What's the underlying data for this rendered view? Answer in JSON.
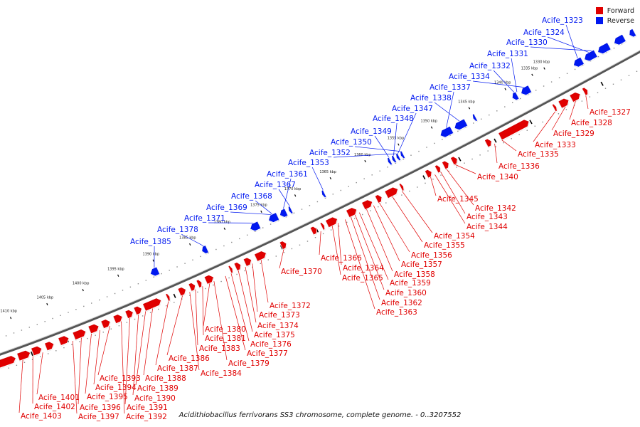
{
  "caption": "Acidithiobacillus ferrivorans SS3 chromosome, complete genome. - 0..3207552",
  "legend": [
    {
      "label": "Forward",
      "color": "#e00000"
    },
    {
      "label": "Reverse",
      "color": "#0018f0"
    }
  ],
  "colors": {
    "forward": "#e00000",
    "reverse": "#0018f0",
    "backbone": "#555555"
  },
  "ticks": [
    "1330 kbp",
    "1335 kbp",
    "1340 kbp",
    "1345 kbp",
    "1350 kbp",
    "1355 kbp",
    "1360 kbp",
    "1365 kbp",
    "1370 kbp",
    "1375 kbp",
    "1380 kbp",
    "1385 kbp",
    "1390 kbp",
    "1395 kbp",
    "1400 kbp",
    "1405 kbp",
    "1410 kbp"
  ],
  "reverse_genes": [
    "Acife_1323",
    "Acife_1324",
    "Acife_1330",
    "Acife_1331",
    "Acife_1332",
    "Acife_1334",
    "Acife_1337",
    "Acife_1338",
    "Acife_1347",
    "Acife_1348",
    "Acife_1349",
    "Acife_1350",
    "Acife_1352",
    "Acife_1353",
    "Acife_1361",
    "Acife_1367",
    "Acife_1368",
    "Acife_1369",
    "Acife_1371",
    "Acife_1378",
    "Acife_1385"
  ],
  "forward_genes": [
    "Acife_1327",
    "Acife_1328",
    "Acife_1329",
    "Acife_1333",
    "Acife_1335",
    "Acife_1336",
    "Acife_1340",
    "Acife_1342",
    "Acife_1343",
    "Acife_1344",
    "Acife_1345",
    "Acife_1354",
    "Acife_1355",
    "Acife_1356",
    "Acife_1357",
    "Acife_1358",
    "Acife_1359",
    "Acife_1360",
    "Acife_1362",
    "Acife_1363",
    "Acife_1364",
    "Acife_1365",
    "Acife_1366",
    "Acife_1370",
    "Acife_1372",
    "Acife_1373",
    "Acife_1374",
    "Acife_1375",
    "Acife_1376",
    "Acife_1377",
    "Acife_1379",
    "Acife_1380",
    "Acife_1381",
    "Acife_1383",
    "Acife_1384",
    "Acife_1386",
    "Acife_1387",
    "Acife_1388",
    "Acife_1389",
    "Acife_1390",
    "Acife_1391",
    "Acife_1392",
    "Acife_1393",
    "Acife_1394",
    "Acife_1395",
    "Acife_1396",
    "Acife_1397",
    "Acife_1401",
    "Acife_1402",
    "Acife_1403"
  ]
}
